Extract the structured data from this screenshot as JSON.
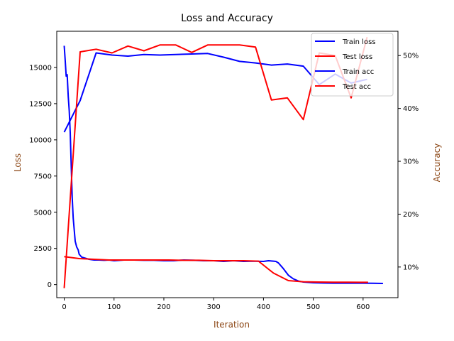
{
  "chart_data": {
    "type": "line",
    "title": "Loss and Accuracy",
    "xlabel": "Iteration",
    "ylabel_left": "Loss",
    "ylabel_right": "Accuracy",
    "label_color": "#8B4513",
    "xlim": [
      -15,
      670
    ],
    "ylim_left": [
      -900,
      17500
    ],
    "ylim_right": [
      4.2,
      54.6
    ],
    "x_ticks": [
      0,
      100,
      200,
      300,
      400,
      500,
      600
    ],
    "y_ticks_left": [
      0,
      2500,
      5000,
      7500,
      10000,
      12500,
      15000
    ],
    "y_ticks_right": [
      10,
      20,
      30,
      40,
      50
    ],
    "y_tick_suffix_right": "%",
    "legend_position": "top-right",
    "series": [
      {
        "name": "Train loss",
        "axis": "left",
        "color": "#0000ff",
        "x": [
          0,
          2,
          4,
          6,
          8,
          10,
          12,
          14,
          16,
          18,
          20,
          22,
          25,
          28,
          30,
          35,
          40,
          50,
          60,
          70,
          80,
          90,
          100,
          120,
          140,
          160,
          180,
          200,
          220,
          240,
          260,
          280,
          300,
          320,
          340,
          360,
          380,
          400,
          410,
          420,
          425,
          430,
          440,
          450,
          460,
          470,
          480,
          500,
          520,
          540,
          560,
          580,
          600,
          620,
          640
        ],
        "y": [
          16500,
          15500,
          14400,
          14500,
          13000,
          12000,
          10500,
          8200,
          6000,
          4600,
          3800,
          3000,
          2600,
          2400,
          2100,
          1900,
          1850,
          1750,
          1700,
          1700,
          1680,
          1700,
          1650,
          1700,
          1700,
          1680,
          1680,
          1650,
          1650,
          1700,
          1680,
          1650,
          1650,
          1600,
          1650,
          1600,
          1620,
          1600,
          1650,
          1620,
          1600,
          1500,
          1100,
          650,
          400,
          250,
          180,
          130,
          110,
          100,
          100,
          100,
          100,
          90,
          80
        ]
      },
      {
        "name": "Test loss",
        "axis": "left",
        "color": "#ff0000",
        "x": [
          0,
          30,
          60,
          90,
          120,
          150,
          180,
          210,
          240,
          270,
          300,
          330,
          360,
          390,
          420,
          450,
          480,
          510,
          540,
          570,
          600,
          610
        ],
        "y": [
          1930,
          1800,
          1750,
          1700,
          1700,
          1700,
          1700,
          1700,
          1680,
          1680,
          1650,
          1650,
          1650,
          1620,
          800,
          280,
          200,
          180,
          170,
          170,
          160,
          160
        ]
      },
      {
        "name": "Train acc",
        "axis": "right",
        "color": "#0000ff",
        "x": [
          0,
          32,
          64,
          96,
          128,
          160,
          192,
          224,
          256,
          288,
          320,
          352,
          384,
          416,
          448,
          480,
          512,
          544,
          576,
          608
        ],
        "y": [
          35.5,
          41.5,
          50.5,
          50.1,
          49.9,
          50.2,
          50.1,
          50.2,
          50.3,
          50.4,
          49.7,
          48.9,
          48.6,
          48.2,
          48.4,
          48.0,
          44.5,
          46.5,
          44.8,
          45.5
        ]
      },
      {
        "name": "Test acc",
        "axis": "right",
        "color": "#ff0000",
        "x": [
          0,
          32,
          64,
          96,
          128,
          160,
          192,
          224,
          256,
          288,
          320,
          352,
          384,
          416,
          448,
          480,
          512,
          544,
          576,
          608
        ],
        "y": [
          6,
          50.7,
          51.2,
          50.5,
          51.8,
          50.9,
          52.0,
          52.0,
          50.6,
          52.0,
          52.0,
          52.0,
          51.6,
          41.6,
          42.0,
          37.9,
          50.5,
          50.0,
          42.0,
          53.5
        ]
      }
    ]
  }
}
